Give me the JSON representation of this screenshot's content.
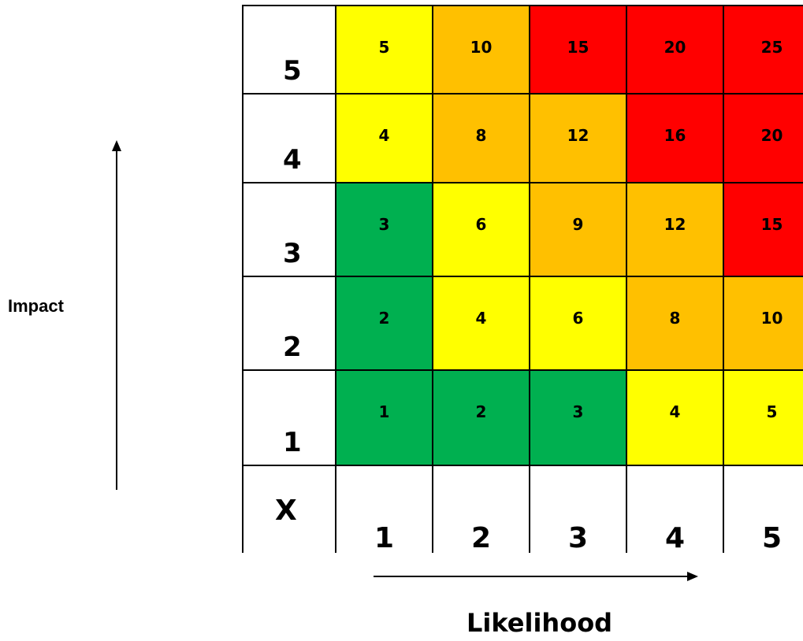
{
  "axis": {
    "y_title": "Impact",
    "x_title": "Likelihood"
  },
  "corner_label": "X",
  "colors": {
    "green": "#00b050",
    "yellow": "#ffff00",
    "orange": "#ffc000",
    "red": "#ff0000",
    "white": "#ffffff",
    "grid": "#000000"
  },
  "rows": [
    {
      "label": "5",
      "cells": [
        {
          "value": "5",
          "level": "yellow"
        },
        {
          "value": "10",
          "level": "orange"
        },
        {
          "value": "15",
          "level": "red"
        },
        {
          "value": "20",
          "level": "red"
        },
        {
          "value": "25",
          "level": "red"
        }
      ]
    },
    {
      "label": "4",
      "cells": [
        {
          "value": "4",
          "level": "yellow"
        },
        {
          "value": "8",
          "level": "orange"
        },
        {
          "value": "12",
          "level": "orange"
        },
        {
          "value": "16",
          "level": "red"
        },
        {
          "value": "20",
          "level": "red"
        }
      ]
    },
    {
      "label": "3",
      "cells": [
        {
          "value": "3",
          "level": "green"
        },
        {
          "value": "6",
          "level": "yellow"
        },
        {
          "value": "9",
          "level": "orange"
        },
        {
          "value": "12",
          "level": "orange"
        },
        {
          "value": "15",
          "level": "red"
        }
      ]
    },
    {
      "label": "2",
      "cells": [
        {
          "value": "2",
          "level": "green"
        },
        {
          "value": "4",
          "level": "yellow"
        },
        {
          "value": "6",
          "level": "yellow"
        },
        {
          "value": "8",
          "level": "orange"
        },
        {
          "value": "10",
          "level": "orange"
        }
      ]
    },
    {
      "label": "1",
      "cells": [
        {
          "value": "1",
          "level": "green"
        },
        {
          "value": "2",
          "level": "green"
        },
        {
          "value": "3",
          "level": "green"
        },
        {
          "value": "4",
          "level": "yellow"
        },
        {
          "value": "5",
          "level": "yellow"
        }
      ]
    }
  ],
  "columns": [
    "1",
    "2",
    "3",
    "4",
    "5"
  ]
}
